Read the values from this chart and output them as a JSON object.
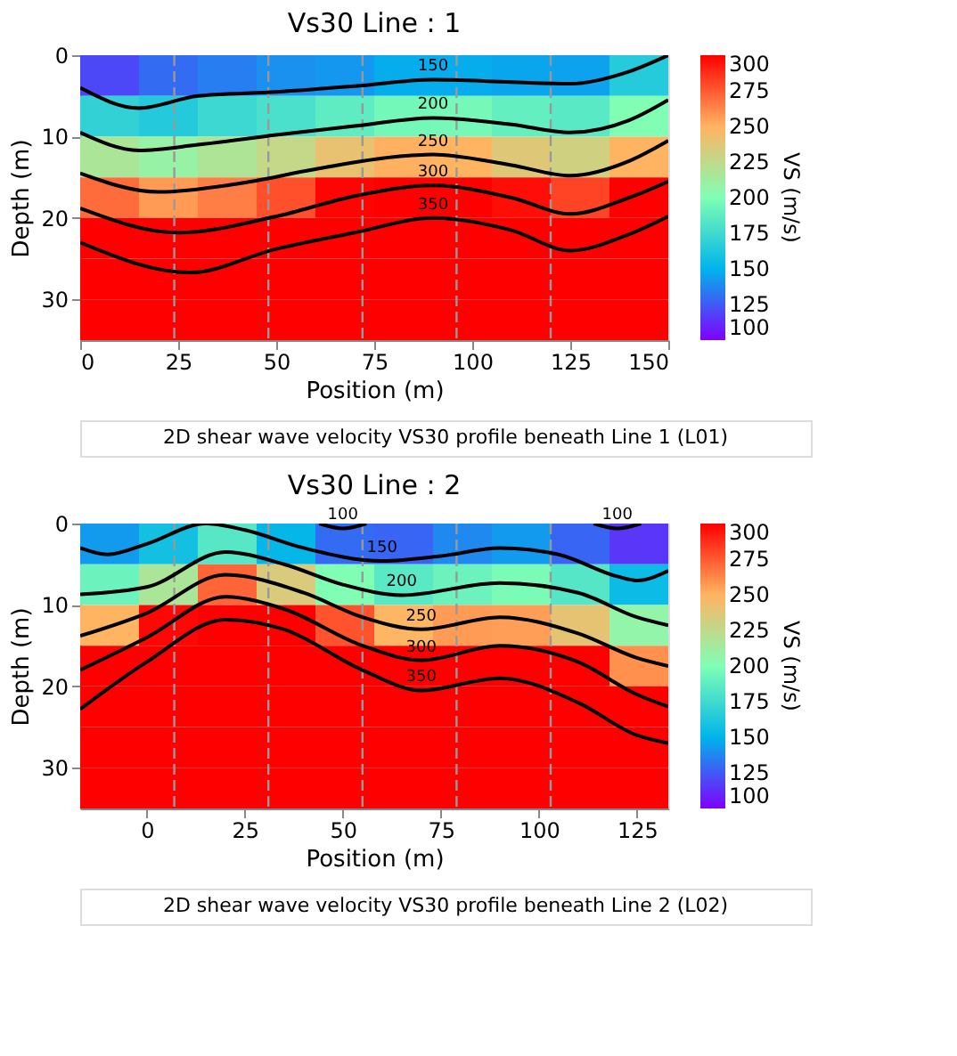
{
  "chart_data": [
    {
      "type": "heatmap",
      "title": "Vs30 Line : 1",
      "xlabel": "Position (m)",
      "ylabel": "Depth (m)",
      "clabel": "VS (m/s)",
      "annotations": [
        "2D shear wave velocity VS30 profile beneath Line 1 (L01)"
      ],
      "x": [
        7.5,
        22.5,
        37.5,
        52.5,
        67.5,
        82.5,
        97.5,
        112.5,
        127.5,
        142.5
      ],
      "y": [
        2.5,
        7.5,
        12.5,
        17.5,
        22.5,
        27.5,
        32.5
      ],
      "cells": [
        [
          120,
          130,
          135,
          140,
          142,
          148,
          148,
          146,
          145,
          165
        ],
        [
          169,
          164,
          174,
          179,
          187,
          195,
          196,
          189,
          185,
          200
        ],
        [
          217,
          209,
          218,
          227,
          241,
          251,
          250,
          237,
          231,
          250
        ],
        [
          270,
          257,
          265,
          278,
          299,
          300,
          300,
          296,
          281,
          300
        ],
        [
          300,
          300,
          300,
          300,
          300,
          300,
          300,
          300,
          300,
          300
        ],
        [
          300,
          300,
          300,
          300,
          300,
          300,
          300,
          300,
          300,
          300
        ],
        [
          300,
          300,
          300,
          300,
          300,
          300,
          300,
          300,
          300,
          300
        ]
      ],
      "clim": [
        100,
        300
      ],
      "cticks": [
        100,
        125,
        150,
        175,
        200,
        225,
        250,
        275,
        300
      ],
      "series": [
        {
          "type": "line",
          "name": "150",
          "color": "#000000",
          "x": [
            0,
            15,
            30,
            50,
            70,
            90,
            110,
            125,
            140,
            150
          ],
          "values": [
            4,
            6.5,
            5,
            4.5,
            3.8,
            3,
            3.3,
            3.5,
            2,
            0
          ]
        },
        {
          "type": "line",
          "name": "200",
          "color": "#000000",
          "x": [
            0,
            15,
            30,
            50,
            70,
            90,
            110,
            125,
            140,
            150
          ],
          "values": [
            9.5,
            11.7,
            11,
            9.8,
            8.7,
            7.7,
            8.5,
            9.5,
            8,
            5.5
          ]
        },
        {
          "type": "line",
          "name": "250",
          "color": "#000000",
          "x": [
            0,
            20,
            40,
            60,
            80,
            90,
            110,
            125,
            140,
            150
          ],
          "values": [
            14.5,
            16.8,
            15.8,
            14,
            12.5,
            12.2,
            13.5,
            14.8,
            13,
            10.5
          ]
        },
        {
          "type": "line",
          "name": "300",
          "color": "#000000",
          "x": [
            0,
            25,
            50,
            70,
            90,
            110,
            125,
            140,
            150
          ],
          "values": [
            18.8,
            21.8,
            19.8,
            17.3,
            16,
            17.5,
            19.5,
            17.5,
            15.5
          ]
        },
        {
          "type": "line",
          "name": "350",
          "color": "#000000",
          "x": [
            0,
            28,
            50,
            70,
            90,
            110,
            125,
            140,
            150
          ],
          "values": [
            23,
            26.7,
            23.8,
            21.8,
            20,
            21.5,
            24,
            22,
            19.8
          ]
        }
      ],
      "ref_lines": [
        {
          "axis": "x",
          "value": 24,
          "color": "#999999",
          "line_style": "dashed"
        },
        {
          "axis": "x",
          "value": 48,
          "color": "#999999",
          "line_style": "dashed"
        },
        {
          "axis": "x",
          "value": 72,
          "color": "#999999",
          "line_style": "dashed"
        },
        {
          "axis": "x",
          "value": 96,
          "color": "#999999",
          "line_style": "dashed"
        },
        {
          "axis": "x",
          "value": 120,
          "color": "#999999",
          "line_style": "dashed"
        }
      ],
      "xlim": [
        0,
        150
      ],
      "xticks": [
        0,
        25,
        50,
        75,
        100,
        125,
        150
      ],
      "ylim": [
        35,
        0
      ],
      "yticks": [
        0,
        10,
        20,
        30
      ],
      "grid": false,
      "legend": "right"
    },
    {
      "type": "heatmap",
      "title": "Vs30 Line : 2",
      "xlabel": "Position (m)",
      "ylabel": "Depth (m)",
      "clabel": "VS (m/s)",
      "annotations": [
        "2D shear wave velocity VS30 profile beneath Line 2 (L02)"
      ],
      "x": [
        -9.5,
        5.5,
        20.5,
        35.5,
        50.5,
        65.5,
        80.5,
        95.5,
        110.5,
        125.5
      ],
      "y": [
        2.5,
        7.5,
        12.5,
        17.5,
        22.5,
        27.5,
        32.5
      ],
      "cells": [
        [
          143,
          158,
          184,
          152,
          130,
          128,
          138,
          143,
          128,
          115
        ],
        [
          192,
          217,
          272,
          235,
          200,
          185,
          192,
          198,
          183,
          155
        ],
        [
          250,
          298,
          300,
          300,
          277,
          249,
          257,
          256,
          240,
          207
        ],
        [
          300,
          300,
          300,
          300,
          300,
          300,
          300,
          300,
          300,
          260
        ],
        [
          300,
          300,
          300,
          300,
          300,
          300,
          300,
          300,
          300,
          300
        ],
        [
          300,
          300,
          300,
          300,
          300,
          300,
          300,
          300,
          300,
          300
        ],
        [
          300,
          300,
          300,
          300,
          300,
          300,
          300,
          300,
          300,
          300
        ]
      ],
      "clim": [
        100,
        300
      ],
      "cticks": [
        100,
        125,
        150,
        175,
        200,
        225,
        250,
        275,
        300
      ],
      "series": [
        {
          "type": "line",
          "name": "100",
          "color": "#000000",
          "x": [
            44,
            50,
            56
          ],
          "values": [
            0,
            0.6,
            0
          ]
        },
        {
          "type": "line",
          "name": "100",
          "color": "#000000",
          "x": [
            114,
            120,
            126
          ],
          "values": [
            0,
            0.6,
            0
          ]
        },
        {
          "type": "line",
          "name": "150",
          "color": "#000000",
          "x": [
            -17,
            -10,
            0,
            15,
            25,
            40,
            60,
            75,
            90,
            105,
            120,
            125,
            133
          ],
          "values": [
            3,
            3.8,
            2.5,
            0,
            0.8,
            3,
            4.6,
            4,
            3,
            3.8,
            6.5,
            7,
            5.8
          ]
        },
        {
          "type": "line",
          "name": "200",
          "color": "#000000",
          "x": [
            -17,
            0,
            20,
            35,
            50,
            65,
            90,
            110,
            125,
            133
          ],
          "values": [
            8.7,
            7.8,
            3.5,
            5,
            7.5,
            8.8,
            7.3,
            8.5,
            11.5,
            12.5
          ]
        },
        {
          "type": "line",
          "name": "250",
          "color": "#000000",
          "x": [
            -17,
            0,
            20,
            40,
            55,
            70,
            90,
            110,
            125,
            133
          ],
          "values": [
            13.8,
            11,
            6.3,
            8.5,
            11.5,
            13,
            11.5,
            13.5,
            16.5,
            17.5
          ]
        },
        {
          "type": "line",
          "name": "300",
          "color": "#000000",
          "x": [
            -17,
            0,
            20,
            35,
            55,
            70,
            90,
            110,
            125,
            133
          ],
          "values": [
            18,
            14,
            9,
            10.5,
            15,
            16.8,
            15,
            17,
            21,
            22.5
          ]
        },
        {
          "type": "line",
          "name": "350",
          "color": "#000000",
          "x": [
            -17,
            0,
            20,
            35,
            55,
            70,
            90,
            110,
            125,
            133
          ],
          "values": [
            22.8,
            17,
            11.8,
            13,
            18,
            20.5,
            19,
            22,
            26,
            27
          ]
        }
      ],
      "ref_lines": [
        {
          "axis": "x",
          "value": 7,
          "color": "#999999",
          "line_style": "dashed"
        },
        {
          "axis": "x",
          "value": 31,
          "color": "#999999",
          "line_style": "dashed"
        },
        {
          "axis": "x",
          "value": 55,
          "color": "#999999",
          "line_style": "dashed"
        },
        {
          "axis": "x",
          "value": 79,
          "color": "#999999",
          "line_style": "dashed"
        },
        {
          "axis": "x",
          "value": 103,
          "color": "#999999",
          "line_style": "dashed"
        }
      ],
      "xlim": [
        -17,
        133
      ],
      "xticks": [
        0,
        25,
        50,
        75,
        100,
        125
      ],
      "ylim": [
        35,
        0
      ],
      "yticks": [
        0,
        10,
        20,
        30
      ],
      "grid": false,
      "legend": "right"
    }
  ]
}
